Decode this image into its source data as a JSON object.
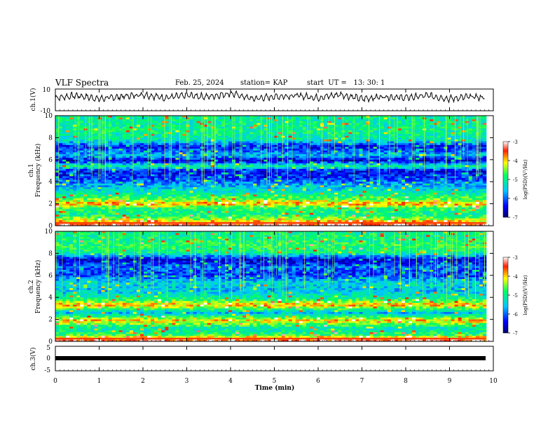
{
  "header": {
    "title": "VLF Spectra",
    "date": "Feb. 25, 2024",
    "station": "station= KAP",
    "start": "start  UT =   13: 30: 1"
  },
  "chart_data": {
    "type": "heatmap",
    "panels": [
      {
        "name": "ch1-waveform",
        "type": "line",
        "ylabel": "ch.1(V)",
        "ylim": [
          -10,
          10
        ],
        "yticks": [
          "10",
          "-10"
        ],
        "x": [
          0.0,
          0.5,
          1.0,
          1.5,
          2.0,
          2.5,
          3.0,
          3.5,
          4.0,
          4.5,
          5.0,
          5.5,
          6.0,
          6.5,
          7.0,
          7.5,
          8.0,
          8.5,
          9.0,
          9.5,
          9.8
        ],
        "y": [
          2,
          4,
          1,
          3,
          5,
          2,
          4,
          3,
          6,
          1,
          3,
          4,
          2,
          5,
          1,
          3,
          2,
          4,
          1,
          3,
          2
        ]
      },
      {
        "name": "ch1-spectrogram",
        "type": "heatmap",
        "ylabel": "ch.1\nFrequency (kHz)",
        "ylim": [
          0,
          10
        ],
        "yticks": [
          "0",
          "2",
          "4",
          "6",
          "8",
          "10"
        ],
        "colorbar": {
          "label": "log(PSD)(V²/Hz)",
          "range": [
            -7,
            -3
          ],
          "ticks": [
            "-3",
            "-4",
            "-5",
            "-6",
            "-7"
          ]
        }
      },
      {
        "name": "ch2-spectrogram",
        "type": "heatmap",
        "ylabel": "ch.2\nFrequency (kHz)",
        "ylim": [
          0,
          10
        ],
        "yticks": [
          "0",
          "2",
          "4",
          "6",
          "8",
          "10"
        ],
        "colorbar": {
          "label": "log(PSD)(V²/Hz)",
          "range": [
            -7,
            -3
          ],
          "ticks": [
            "-3",
            "-4",
            "-5",
            "-6",
            "-7"
          ]
        }
      },
      {
        "name": "ch3-waveform",
        "type": "line",
        "ylabel": "ch.3(V)",
        "ylim": [
          -5,
          5
        ],
        "yticks": [
          "5",
          "0",
          "-5"
        ],
        "x": [
          0,
          9.8
        ],
        "y": [
          0,
          0
        ]
      }
    ],
    "xlabel": "Time  (min)",
    "xlim": [
      0,
      10
    ],
    "xticks": [
      "0",
      "1",
      "2",
      "3",
      "4",
      "5",
      "6",
      "7",
      "8",
      "9",
      "10"
    ],
    "spectra": {
      "ch1": {
        "bands": [
          {
            "f": 0.2,
            "level": -3.4
          },
          {
            "f": 0.5,
            "level": -4.2
          },
          {
            "f": 1.0,
            "level": -5.0
          },
          {
            "f": 1.6,
            "level": -4.8
          },
          {
            "f": 2.0,
            "level": -3.8
          },
          {
            "f": 2.4,
            "level": -4.6
          },
          {
            "f": 3.0,
            "level": -5.2
          },
          {
            "f": 3.6,
            "level": -5.6
          },
          {
            "f": 4.3,
            "level": -6.2
          },
          {
            "f": 5.0,
            "level": -6.4
          },
          {
            "f": 5.4,
            "level": -5.0
          },
          {
            "f": 5.9,
            "level": -6.6
          },
          {
            "f": 6.4,
            "level": -5.6
          },
          {
            "f": 7.2,
            "level": -6.4
          },
          {
            "f": 7.8,
            "level": -5.2
          },
          {
            "f": 8.5,
            "level": -5.0
          },
          {
            "f": 9.3,
            "level": -5.1
          }
        ]
      },
      "ch2": {
        "bands": [
          {
            "f": 0.2,
            "level": -3.4
          },
          {
            "f": 0.6,
            "level": -4.8
          },
          {
            "f": 1.2,
            "level": -5.2
          },
          {
            "f": 1.9,
            "level": -4.0
          },
          {
            "f": 2.6,
            "level": -5.6
          },
          {
            "f": 3.3,
            "level": -3.9
          },
          {
            "f": 3.9,
            "level": -5.0
          },
          {
            "f": 4.6,
            "level": -5.6
          },
          {
            "f": 5.3,
            "level": -5.4
          },
          {
            "f": 6.0,
            "level": -6.2
          },
          {
            "f": 6.8,
            "level": -6.0
          },
          {
            "f": 7.4,
            "level": -6.6
          },
          {
            "f": 8.1,
            "level": -5.0
          },
          {
            "f": 8.7,
            "level": -4.8
          },
          {
            "f": 9.4,
            "level": -5.0
          }
        ]
      }
    }
  }
}
